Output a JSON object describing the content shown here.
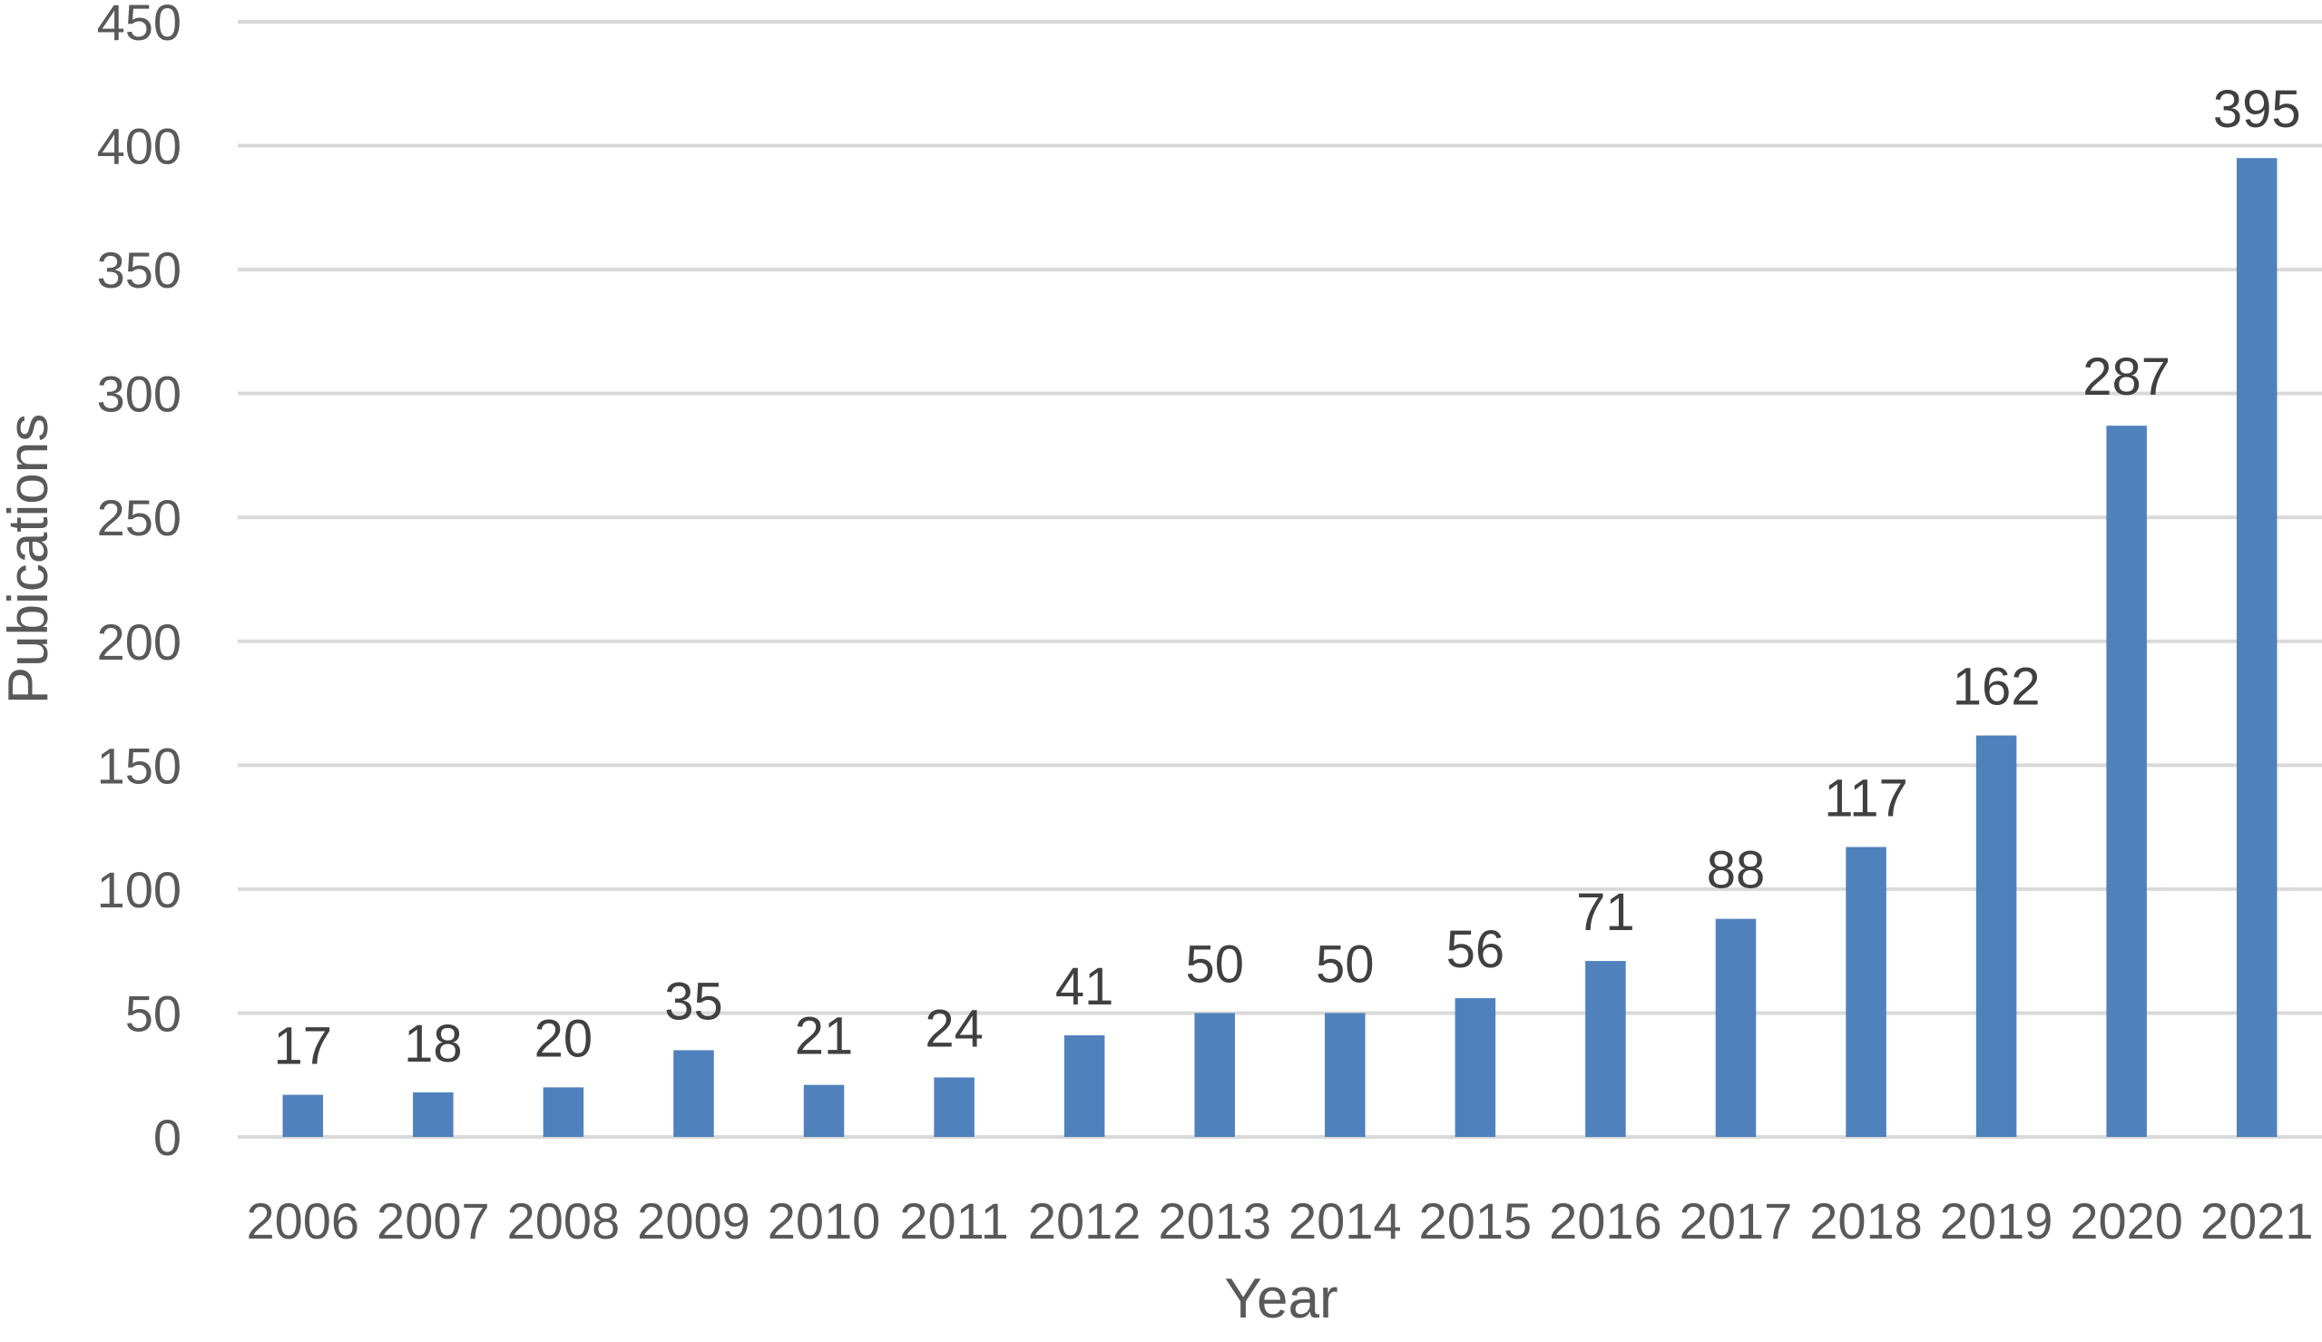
{
  "chart_data": {
    "type": "bar",
    "title": "",
    "xlabel": "Year",
    "ylabel": "Pubications",
    "categories": [
      "2006",
      "2007",
      "2008",
      "2009",
      "2010",
      "2011",
      "2012",
      "2013",
      "2014",
      "2015",
      "2016",
      "2017",
      "2018",
      "2019",
      "2020",
      "2021"
    ],
    "values": [
      17,
      18,
      20,
      35,
      21,
      24,
      41,
      50,
      50,
      56,
      71,
      88,
      117,
      162,
      287,
      395
    ],
    "ylim": [
      0,
      450
    ],
    "yticks": [
      0,
      50,
      100,
      150,
      200,
      250,
      300,
      350,
      400,
      450
    ],
    "grid": true,
    "legend": "none",
    "colors": {
      "bar": "#4f81bd",
      "grid": "#d9d9d9",
      "tick_text": "#595959",
      "label_text": "#404040"
    }
  }
}
